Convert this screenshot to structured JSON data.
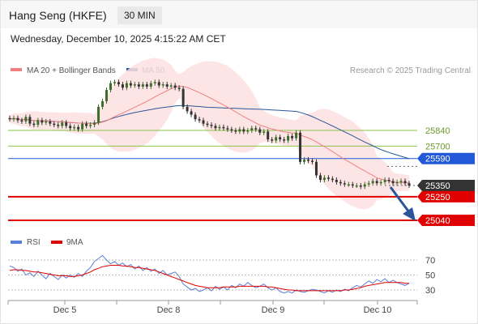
{
  "header": {
    "title": "Hang Seng (HKFE)",
    "timeframe": "30 MIN",
    "datetime": "Wednesday, December 10, 2025 4:15:22 AM CET"
  },
  "colors": {
    "ma20": "#f07f7f",
    "ma50": "#2a5599",
    "bollinger_fill": "#fde0e0",
    "support": "#e00000",
    "resistance": "#2159d8",
    "pivot": "#8bc34a",
    "last": "#333333",
    "rsi": "#5a7fd6",
    "rsi9ma": "#e00000",
    "candle_up": "#3c6e2a",
    "candle_down": "#333333"
  },
  "chart_data": [
    {
      "type": "candlestick",
      "title": "Hang Seng (HKFE)",
      "timeframe": "30 MIN",
      "source": "Research © 2025 Trading Central",
      "legend": [
        {
          "name": "MA 20 + Bollinger Bands",
          "color": "#f07f7f"
        },
        {
          "name": "MA 50",
          "color": "#2a5599"
        }
      ],
      "x_tick_labels": [
        "Dec 5",
        "Dec 8",
        "Dec 9",
        "Dec 10"
      ],
      "ylim": [
        25040,
        26100
      ],
      "key_levels": [
        {
          "value": 25840,
          "label": "25840",
          "kind": "pivot"
        },
        {
          "value": 25700,
          "label": "25700",
          "kind": "pivot"
        },
        {
          "value": 25590,
          "label": "25590",
          "kind": "resistance"
        },
        {
          "value": 25350,
          "label": "25350",
          "kind": "last"
        },
        {
          "value": 25250,
          "label": "25250",
          "kind": "support"
        },
        {
          "value": 25040,
          "label": "25040",
          "kind": "target"
        }
      ],
      "close": [
        25940,
        25950,
        25930,
        25920,
        25960,
        25900,
        25890,
        25930,
        25910,
        25920,
        25900,
        25890,
        25880,
        25910,
        25880,
        25860,
        25870,
        25850,
        25900,
        25880,
        25890,
        25910,
        26050,
        26100,
        26200,
        26260,
        26270,
        26250,
        26220,
        26260,
        26240,
        26250,
        26230,
        26250,
        26230,
        26260,
        26270,
        26240,
        26250,
        26230,
        26240,
        26220,
        26210,
        26050,
        26010,
        25980,
        25940,
        25930,
        25900,
        25890,
        25880,
        25860,
        25870,
        25860,
        25850,
        25840,
        25830,
        25850,
        25830,
        25840,
        25860,
        25850,
        25820,
        25830,
        25760,
        25750,
        25780,
        25760,
        25750,
        25790,
        25770,
        25820,
        25560,
        25580,
        25570,
        25560,
        25440,
        25400,
        25420,
        25410,
        25400,
        25380,
        25370,
        25360,
        25360,
        25350,
        25350,
        25340,
        25360,
        25370,
        25390,
        25370,
        25380,
        25400,
        25390,
        25370,
        25380,
        25390,
        25370,
        25350
      ]
    },
    {
      "type": "line",
      "title": "RSI",
      "legend": [
        {
          "name": "RSI",
          "color": "#5a7fd6"
        },
        {
          "name": "9MA",
          "color": "#e00000"
        }
      ],
      "y_tick_labels": [
        "70",
        "50",
        "30"
      ],
      "ylim": [
        20,
        80
      ],
      "series": [
        {
          "name": "RSI",
          "values": [
            62,
            60,
            55,
            58,
            50,
            53,
            48,
            55,
            50,
            45,
            52,
            48,
            44,
            50,
            46,
            50,
            47,
            52,
            48,
            55,
            60,
            68,
            72,
            76,
            70,
            65,
            68,
            63,
            66,
            61,
            64,
            58,
            62,
            56,
            60,
            55,
            58,
            52,
            56,
            50,
            52,
            54,
            48,
            38,
            34,
            30,
            32,
            28,
            30,
            33,
            29,
            35,
            31,
            34,
            30,
            36,
            33,
            38,
            35,
            40,
            36,
            33,
            35,
            38,
            33,
            30,
            33,
            28,
            26,
            28,
            26,
            30,
            28,
            27,
            29,
            31,
            30,
            28,
            26,
            29,
            27,
            30,
            28,
            31,
            29,
            33,
            36,
            34,
            38,
            42,
            39,
            44,
            41,
            45,
            40,
            43,
            40,
            38,
            36,
            39
          ]
        },
        {
          "name": "9MA",
          "values": [
            56,
            57,
            57,
            56,
            56,
            55,
            54,
            54,
            53,
            52,
            51,
            50,
            49,
            49,
            49,
            48,
            48,
            49,
            50,
            52,
            54,
            57,
            59,
            61,
            62,
            63,
            63,
            63,
            62,
            62,
            61,
            60,
            60,
            59,
            58,
            57,
            56,
            54,
            52,
            50,
            48,
            46,
            44,
            42,
            40,
            38,
            36,
            35,
            34,
            33,
            33,
            33,
            33,
            34,
            34,
            34,
            34,
            35,
            35,
            35,
            35,
            35,
            35,
            35,
            34,
            34,
            33,
            32,
            31,
            30,
            30,
            29,
            29,
            29,
            29,
            29,
            29,
            29,
            29,
            29,
            29,
            29,
            29,
            30,
            30,
            31,
            32,
            33,
            35,
            36,
            37,
            38,
            39,
            40,
            40,
            40,
            40,
            40,
            39,
            39
          ]
        }
      ]
    }
  ]
}
